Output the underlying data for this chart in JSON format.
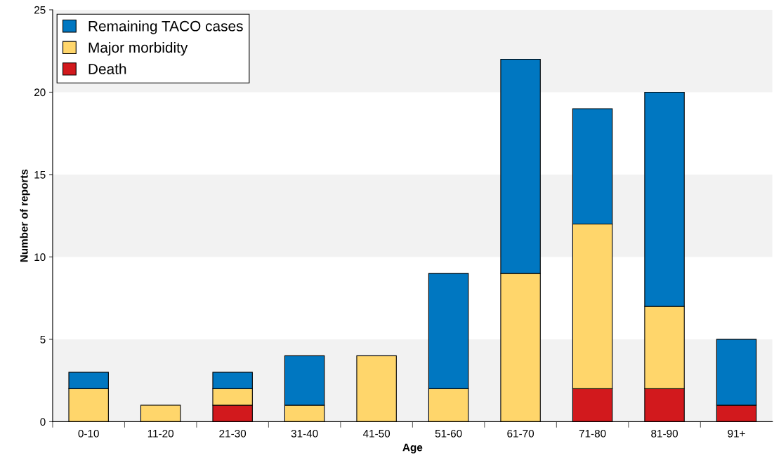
{
  "chart_data": {
    "type": "bar",
    "stacked": true,
    "xlabel": "Age",
    "ylabel": "Number of reports",
    "categories": [
      "0-10",
      "11-20",
      "21-30",
      "31-40",
      "41-50",
      "51-60",
      "61-70",
      "71-80",
      "81-90",
      "91+"
    ],
    "series": [
      {
        "name": "Death",
        "color": "#d2191d",
        "values": [
          0,
          0,
          1,
          0,
          0,
          0,
          0,
          2,
          2,
          1
        ]
      },
      {
        "name": "Major morbidity",
        "color": "#ffd66b",
        "values": [
          2,
          1,
          1,
          1,
          4,
          2,
          9,
          10,
          5,
          0
        ]
      },
      {
        "name": "Remaining TACO cases",
        "color": "#0077c1",
        "values": [
          1,
          0,
          1,
          3,
          0,
          7,
          13,
          7,
          13,
          4
        ]
      }
    ],
    "ylim": [
      0,
      25
    ],
    "yticks": [
      0,
      5,
      10,
      15,
      20,
      25
    ],
    "bands": [
      {
        "axis": "y",
        "from": 0,
        "to": 5,
        "color": "#f2f2f2"
      },
      {
        "axis": "y",
        "from": 10,
        "to": 15,
        "color": "#f2f2f2"
      },
      {
        "axis": "y",
        "from": 20,
        "to": 25,
        "color": "#f2f2f2"
      }
    ],
    "grid": false,
    "legend": "top left"
  }
}
